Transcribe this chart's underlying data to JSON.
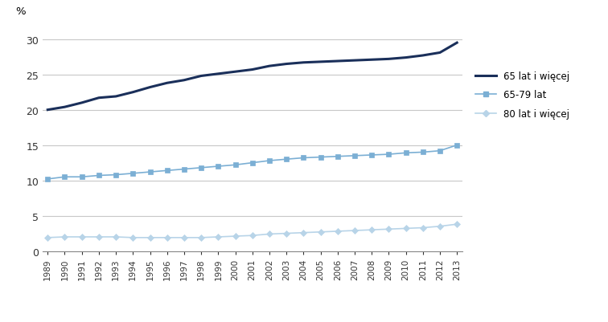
{
  "years": [
    1989,
    1990,
    1991,
    1992,
    1993,
    1994,
    1995,
    1996,
    1997,
    1998,
    1999,
    2000,
    2001,
    2002,
    2003,
    2004,
    2005,
    2006,
    2007,
    2008,
    2009,
    2010,
    2011,
    2012,
    2013
  ],
  "series_65plus": [
    20.0,
    20.4,
    21.0,
    21.7,
    21.9,
    22.5,
    23.2,
    23.8,
    24.2,
    24.8,
    25.1,
    25.4,
    25.7,
    26.2,
    26.5,
    26.7,
    26.8,
    26.9,
    27.0,
    27.1,
    27.2,
    27.4,
    27.7,
    28.1,
    29.5
  ],
  "series_65_79": [
    10.2,
    10.5,
    10.5,
    10.7,
    10.8,
    11.0,
    11.2,
    11.4,
    11.6,
    11.8,
    12.0,
    12.2,
    12.5,
    12.8,
    13.0,
    13.2,
    13.3,
    13.4,
    13.5,
    13.6,
    13.7,
    13.9,
    14.0,
    14.2,
    15.0
  ],
  "series_80plus": [
    1.9,
    2.0,
    2.0,
    2.0,
    2.0,
    1.9,
    1.9,
    1.9,
    1.9,
    1.9,
    2.0,
    2.1,
    2.2,
    2.4,
    2.5,
    2.6,
    2.7,
    2.8,
    2.9,
    3.0,
    3.1,
    3.2,
    3.3,
    3.5,
    3.8
  ],
  "color_65plus": "#1a2f5a",
  "color_65_79": "#7bafd4",
  "color_80plus": "#b8d4e8",
  "label_65plus": "65 lat i więcej",
  "label_65_79": "65-79 lat",
  "label_80plus": "80 lat i więcej",
  "ylabel": "%",
  "ylim": [
    0,
    32
  ],
  "yticks": [
    0,
    5,
    10,
    15,
    20,
    25,
    30
  ],
  "background_color": "#ffffff",
  "grid_color": "#c8c8c8"
}
